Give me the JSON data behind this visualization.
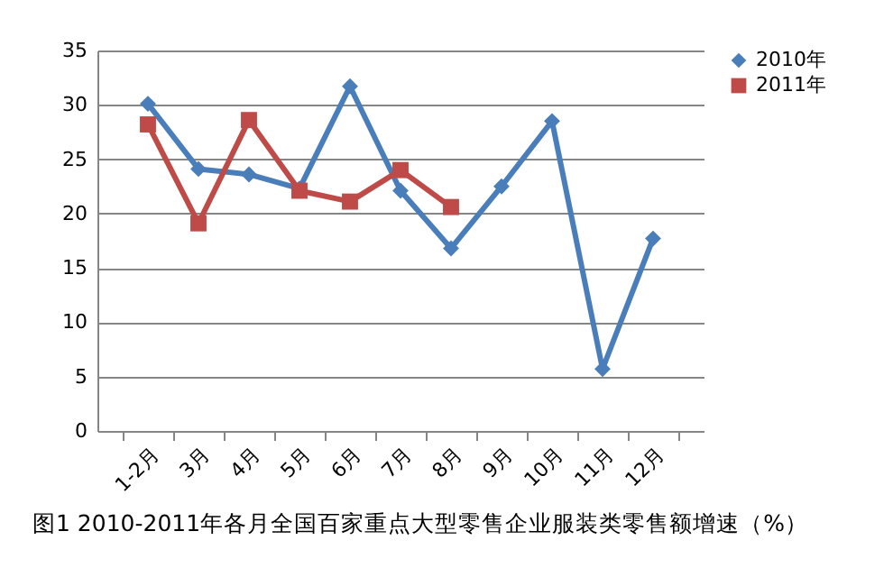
{
  "chart_data": {
    "type": "line",
    "title": "图1  2010-2011年各月全国百家重点大型零售企业服装类零售额增速（%）",
    "categories": [
      "1-2月",
      "3月",
      "4月",
      "5月",
      "6月",
      "7月",
      "8月",
      "9月",
      "10月",
      "11月",
      "12月"
    ],
    "series": [
      {
        "name": "2010年",
        "color": "#4a7ebb",
        "marker": "diamond",
        "values": [
          30.1,
          24.1,
          23.6,
          22.3,
          31.7,
          22.1,
          16.8,
          22.5,
          28.5,
          5.7,
          17.7
        ]
      },
      {
        "name": "2011年",
        "color": "#be4b48",
        "marker": "square",
        "values": [
          28.2,
          19.1,
          28.6,
          22.1,
          21.1,
          24.0,
          20.6,
          null,
          null,
          null,
          null
        ]
      }
    ],
    "ylim": [
      0,
      35
    ],
    "yticks": [
      0,
      5,
      10,
      15,
      20,
      25,
      30,
      35
    ],
    "grid": "y",
    "legend": "right",
    "line_style": "solid"
  }
}
